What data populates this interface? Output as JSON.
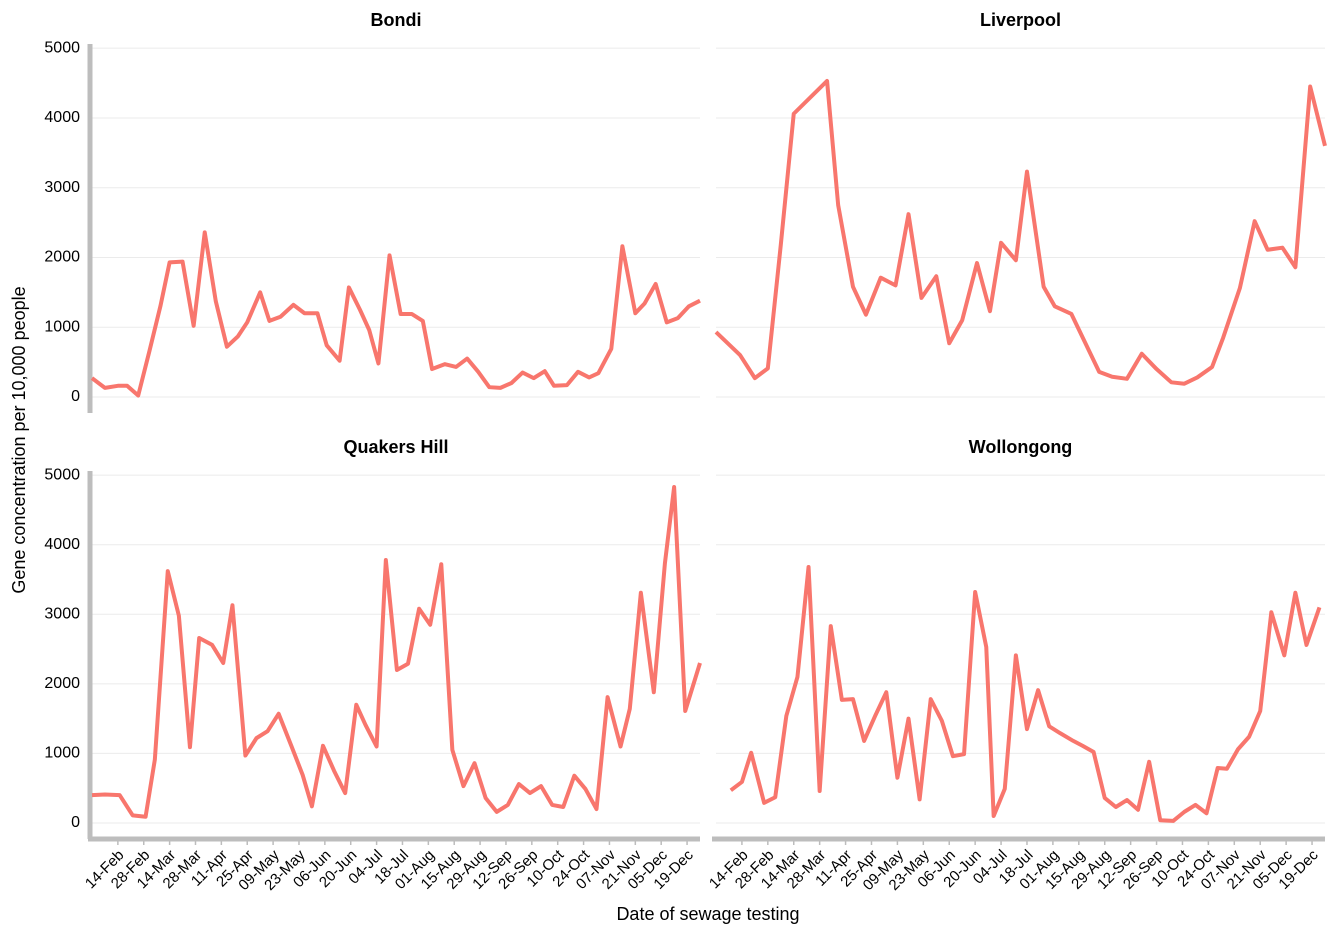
{
  "y_label": "Gene concentration per 10,000 people",
  "x_label": "Date of sewage testing",
  "chart_data": [
    {
      "type": "line",
      "title": "Bondi",
      "color": "#f8766d",
      "grid": true,
      "xlim": [
        "31-Jan",
        "26-Dec"
      ],
      "ylim": [
        -230,
        5060
      ],
      "yticks": [
        0,
        1000,
        2000,
        3000,
        4000,
        5000
      ],
      "x": [
        "31-Jan",
        "07-Feb",
        "14-Feb",
        "19-Feb",
        "25-Feb",
        "03-Mar",
        "09-Mar",
        "14-Mar",
        "21-Mar",
        "27-Mar",
        "02-Apr",
        "08-Apr",
        "14-Apr",
        "20-Apr",
        "25-Apr",
        "02-May",
        "07-May",
        "13-May",
        "20-May",
        "26-May",
        "02-Jun",
        "07-Jun",
        "14-Jun",
        "19-Jun",
        "25-Jun",
        "30-Jun",
        "05-Jul",
        "11-Jul",
        "17-Jul",
        "23-Jul",
        "29-Jul",
        "03-Aug",
        "10-Aug",
        "16-Aug",
        "22-Aug",
        "28-Aug",
        "03-Sep",
        "09-Sep",
        "15-Sep",
        "21-Sep",
        "27-Sep",
        "03-Oct",
        "08-Oct",
        "15-Oct",
        "21-Oct",
        "27-Oct",
        "01-Nov",
        "08-Nov",
        "14-Nov",
        "21-Nov",
        "26-Nov",
        "02-Dec",
        "08-Dec",
        "14-Dec",
        "20-Dec",
        "26-Dec"
      ],
      "values": [
        270,
        130,
        160,
        160,
        20,
        650,
        1300,
        1930,
        1940,
        1020,
        2360,
        1370,
        720,
        870,
        1070,
        1500,
        1090,
        1150,
        1320,
        1200,
        1200,
        740,
        520,
        1570,
        1250,
        960,
        480,
        2030,
        1190,
        1190,
        1090,
        400,
        470,
        430,
        550,
        360,
        140,
        130,
        200,
        350,
        270,
        370,
        160,
        170,
        360,
        280,
        340,
        690,
        2160,
        1200,
        1340,
        1620,
        1070,
        1130,
        1300,
        1380
      ]
    },
    {
      "type": "line",
      "title": "Liverpool",
      "color": "#f8766d",
      "grid": true,
      "xlim": [
        "31-Jan",
        "26-Dec"
      ],
      "ylim": [
        -230,
        5060
      ],
      "yticks": [
        0,
        1000,
        2000,
        3000,
        4000,
        5000
      ],
      "x": [
        "31-Jan",
        "13-Feb",
        "21-Feb",
        "28-Feb",
        "07-Mar",
        "14-Mar",
        "01-Apr",
        "07-Apr",
        "15-Apr",
        "22-Apr",
        "30-Apr",
        "08-May",
        "15-May",
        "22-May",
        "30-May",
        "06-Jun",
        "13-Jun",
        "21-Jun",
        "28-Jun",
        "04-Jul",
        "12-Jul",
        "18-Jul",
        "27-Jul",
        "02-Aug",
        "11-Aug",
        "26-Aug",
        "02-Sep",
        "10-Sep",
        "18-Sep",
        "26-Sep",
        "04-Oct",
        "11-Oct",
        "18-Oct",
        "26-Oct",
        "01-Nov",
        "10-Nov",
        "18-Nov",
        "25-Nov",
        "03-Dec",
        "10-Dec",
        "18-Dec",
        "26-Dec"
      ],
      "values": [
        930,
        600,
        270,
        410,
        2180,
        4060,
        4530,
        2750,
        1580,
        1180,
        1710,
        1600,
        2620,
        1420,
        1730,
        770,
        1100,
        1920,
        1230,
        2210,
        1960,
        3230,
        1580,
        1300,
        1190,
        360,
        290,
        260,
        620,
        400,
        210,
        190,
        280,
        430,
        850,
        1560,
        2520,
        2110,
        2140,
        1860,
        4450,
        3600
      ]
    },
    {
      "type": "line",
      "title": "Quakers Hill",
      "color": "#f8766d",
      "grid": true,
      "xlim": [
        "31-Jan",
        "26-Dec"
      ],
      "ylim": [
        -230,
        5060
      ],
      "yticks": [
        0,
        1000,
        2000,
        3000,
        4000,
        5000
      ],
      "xticks": [
        "14-Feb",
        "28-Feb",
        "14-Mar",
        "28-Mar",
        "11-Apr",
        "25-Apr",
        "09-May",
        "23-May",
        "06-Jun",
        "20-Jun",
        "04-Jul",
        "18-Jul",
        "01-Aug",
        "15-Aug",
        "29-Aug",
        "12-Sep",
        "26-Sep",
        "10-Oct",
        "24-Oct",
        "07-Nov",
        "21-Nov",
        "05-Dec",
        "19-Dec"
      ],
      "x": [
        "31-Jan",
        "07-Feb",
        "15-Feb",
        "22-Feb",
        "01-Mar",
        "06-Mar",
        "13-Mar",
        "19-Mar",
        "25-Mar",
        "30-Mar",
        "06-Apr",
        "12-Apr",
        "17-Apr",
        "24-Apr",
        "30-Apr",
        "06-May",
        "12-May",
        "19-May",
        "25-May",
        "30-May",
        "05-Jun",
        "11-Jun",
        "17-Jun",
        "23-Jun",
        "28-Jun",
        "04-Jul",
        "09-Jul",
        "15-Jul",
        "21-Jul",
        "27-Jul",
        "02-Aug",
        "08-Aug",
        "14-Aug",
        "20-Aug",
        "26-Aug",
        "01-Sep",
        "07-Sep",
        "13-Sep",
        "19-Sep",
        "25-Sep",
        "01-Oct",
        "07-Oct",
        "13-Oct",
        "19-Oct",
        "25-Oct",
        "31-Oct",
        "06-Nov",
        "13-Nov",
        "18-Nov",
        "24-Nov",
        "01-Dec",
        "07-Dec",
        "12-Dec",
        "18-Dec",
        "26-Dec"
      ],
      "values": [
        400,
        410,
        400,
        110,
        90,
        910,
        3620,
        2980,
        1090,
        2660,
        2560,
        2300,
        3130,
        970,
        1220,
        1320,
        1570,
        1100,
        690,
        240,
        1110,
        750,
        430,
        1700,
        1410,
        1100,
        3780,
        2200,
        2290,
        3080,
        2850,
        3720,
        1050,
        530,
        860,
        360,
        160,
        260,
        560,
        430,
        530,
        260,
        230,
        680,
        490,
        200,
        1810,
        1100,
        1640,
        3310,
        1880,
        3730,
        4830,
        1610,
        2300
      ]
    },
    {
      "type": "line",
      "title": "Wollongong",
      "color": "#f8766d",
      "grid": true,
      "xlim": [
        "31-Jan",
        "26-Dec"
      ],
      "ylim": [
        -230,
        5060
      ],
      "yticks": [
        0,
        1000,
        2000,
        3000,
        4000,
        5000
      ],
      "xticks": [
        "14-Feb",
        "28-Feb",
        "14-Mar",
        "28-Mar",
        "11-Apr",
        "25-Apr",
        "09-May",
        "23-May",
        "06-Jun",
        "20-Jun",
        "04-Jul",
        "18-Jul",
        "01-Aug",
        "15-Aug",
        "29-Aug",
        "12-Sep",
        "26-Sep",
        "10-Oct",
        "24-Oct",
        "07-Nov",
        "21-Nov",
        "05-Dec",
        "19-Dec"
      ],
      "x": [
        "08-Feb",
        "14-Feb",
        "19-Feb",
        "26-Feb",
        "04-Mar",
        "10-Mar",
        "16-Mar",
        "22-Mar",
        "28-Mar",
        "03-Apr",
        "09-Apr",
        "15-Apr",
        "21-Apr",
        "27-Apr",
        "03-May",
        "09-May",
        "15-May",
        "21-May",
        "27-May",
        "02-Jun",
        "08-Jun",
        "14-Jun",
        "20-Jun",
        "26-Jun",
        "30-Jun",
        "06-Jul",
        "12-Jul",
        "18-Jul",
        "24-Jul",
        "30-Jul",
        "05-Aug",
        "12-Aug",
        "17-Aug",
        "23-Aug",
        "29-Aug",
        "04-Sep",
        "10-Sep",
        "16-Sep",
        "22-Sep",
        "28-Sep",
        "05-Oct",
        "11-Oct",
        "17-Oct",
        "23-Oct",
        "29-Oct",
        "03-Nov",
        "09-Nov",
        "15-Nov",
        "21-Nov",
        "27-Nov",
        "04-Dec",
        "10-Dec",
        "16-Dec",
        "23-Dec"
      ],
      "values": [
        470,
        590,
        1010,
        290,
        370,
        1540,
        2100,
        3680,
        460,
        2830,
        1770,
        1780,
        1180,
        1540,
        1880,
        650,
        1500,
        340,
        1780,
        1470,
        960,
        990,
        3320,
        2530,
        100,
        490,
        2410,
        1350,
        1910,
        1390,
        1290,
        1180,
        1110,
        1020,
        360,
        230,
        330,
        190,
        880,
        40,
        30,
        160,
        260,
        140,
        790,
        780,
        1060,
        1240,
        1610,
        3030,
        2410,
        3310,
        2560,
        3100
      ]
    }
  ]
}
